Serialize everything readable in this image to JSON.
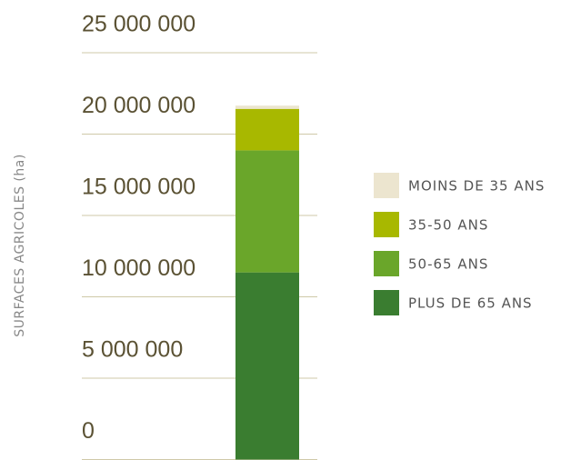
{
  "chart_data": {
    "type": "bar",
    "stacked": true,
    "ylabel": "SURFACES AGRICOLES (ha)",
    "categories": [
      null
    ],
    "series": [
      {
        "name": "PLUS DE 65 ANS",
        "color": "#3a7d30",
        "values": [
          11500000
        ]
      },
      {
        "name": "50-65 ANS",
        "color": "#6aa62a",
        "values": [
          7500000
        ]
      },
      {
        "name": "35-50 ANS",
        "color": "#a8b800",
        "values": [
          2550000
        ]
      },
      {
        "name": "MOINS DE 35 ANS",
        "color": "#ece5cf",
        "values": [
          200000
        ]
      }
    ],
    "ylim": [
      0,
      25000000
    ],
    "yticks": [
      0,
      {
        "value": 5000000,
        "label": "5 000 000"
      },
      {
        "value": 10000000,
        "label": "10 000 000"
      },
      {
        "value": 15000000,
        "label": "15 000 000"
      },
      {
        "value": 20000000,
        "label": "20 000 000"
      },
      {
        "value": 25000000,
        "label": "25 000 000"
      }
    ],
    "grid": true,
    "legend": "right"
  }
}
